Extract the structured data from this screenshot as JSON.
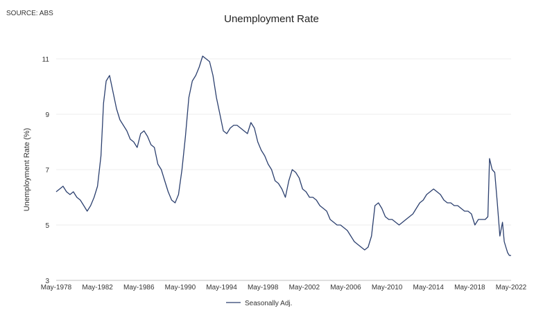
{
  "source": "SOURCE: ABS",
  "chart_data": {
    "type": "line",
    "title": "Unemployment Rate",
    "xlabel": "",
    "ylabel": "Unemployment Rate (%)",
    "ylim": [
      3,
      11
    ],
    "yticks": [
      3,
      5,
      7,
      9,
      11
    ],
    "xlim": [
      "May-1978",
      "May-2022"
    ],
    "xticks": [
      "May-1978",
      "May-1982",
      "May-1986",
      "May-1990",
      "May-1994",
      "May-1998",
      "May-2002",
      "May-2006",
      "May-2010",
      "May-2014",
      "May-2018",
      "May-2022"
    ],
    "grid": "horizontal",
    "legend": "bottom",
    "series": [
      {
        "name": "Seasonally Adj.",
        "color": "#2b3f6e",
        "x": [
          "1978-05",
          "1978-09",
          "1979-01",
          "1979-05",
          "1979-09",
          "1980-01",
          "1980-05",
          "1980-09",
          "1981-01",
          "1981-05",
          "1981-09",
          "1982-01",
          "1982-05",
          "1982-09",
          "1982-12",
          "1983-03",
          "1983-07",
          "1983-11",
          "1984-03",
          "1984-07",
          "1984-11",
          "1985-03",
          "1985-07",
          "1985-11",
          "1986-03",
          "1986-07",
          "1986-11",
          "1987-03",
          "1987-07",
          "1987-11",
          "1988-03",
          "1988-07",
          "1988-11",
          "1989-03",
          "1989-07",
          "1989-11",
          "1990-03",
          "1990-07",
          "1990-11",
          "1991-03",
          "1991-07",
          "1991-11",
          "1992-03",
          "1992-07",
          "1992-11",
          "1993-03",
          "1993-07",
          "1993-11",
          "1994-03",
          "1994-07",
          "1994-11",
          "1995-03",
          "1995-07",
          "1995-11",
          "1996-03",
          "1996-07",
          "1996-11",
          "1997-03",
          "1997-07",
          "1997-11",
          "1998-03",
          "1998-07",
          "1998-11",
          "1999-03",
          "1999-07",
          "1999-11",
          "2000-03",
          "2000-07",
          "2000-11",
          "2001-03",
          "2001-07",
          "2001-11",
          "2002-03",
          "2002-07",
          "2002-11",
          "2003-03",
          "2003-07",
          "2003-11",
          "2004-03",
          "2004-07",
          "2004-11",
          "2005-03",
          "2005-07",
          "2005-11",
          "2006-03",
          "2006-07",
          "2006-11",
          "2007-03",
          "2007-07",
          "2007-11",
          "2008-03",
          "2008-07",
          "2008-11",
          "2009-03",
          "2009-07",
          "2009-11",
          "2010-03",
          "2010-07",
          "2010-11",
          "2011-03",
          "2011-07",
          "2011-11",
          "2012-03",
          "2012-07",
          "2012-11",
          "2013-03",
          "2013-07",
          "2013-11",
          "2014-03",
          "2014-07",
          "2014-11",
          "2015-03",
          "2015-07",
          "2015-11",
          "2016-03",
          "2016-07",
          "2016-11",
          "2017-03",
          "2017-07",
          "2017-11",
          "2018-03",
          "2018-07",
          "2018-11",
          "2019-03",
          "2019-07",
          "2019-11",
          "2020-02",
          "2020-04",
          "2020-07",
          "2020-10",
          "2021-01",
          "2021-04",
          "2021-07",
          "2021-09",
          "2021-11",
          "2022-01",
          "2022-03",
          "2022-05"
        ],
        "y": [
          6.2,
          6.3,
          6.4,
          6.2,
          6.1,
          6.2,
          6.0,
          5.9,
          5.7,
          5.5,
          5.7,
          6.0,
          6.4,
          7.5,
          9.4,
          10.2,
          10.4,
          9.8,
          9.2,
          8.8,
          8.6,
          8.4,
          8.1,
          8.0,
          7.8,
          8.3,
          8.4,
          8.2,
          7.9,
          7.8,
          7.2,
          7.0,
          6.6,
          6.2,
          5.9,
          5.8,
          6.1,
          7.0,
          8.2,
          9.6,
          10.2,
          10.4,
          10.7,
          11.1,
          11.0,
          10.9,
          10.4,
          9.6,
          9.0,
          8.4,
          8.3,
          8.5,
          8.6,
          8.6,
          8.5,
          8.4,
          8.3,
          8.7,
          8.5,
          8.0,
          7.7,
          7.5,
          7.2,
          7.0,
          6.6,
          6.5,
          6.3,
          6.0,
          6.6,
          7.0,
          6.9,
          6.7,
          6.3,
          6.2,
          6.0,
          6.0,
          5.9,
          5.7,
          5.6,
          5.5,
          5.2,
          5.1,
          5.0,
          5.0,
          4.9,
          4.8,
          4.6,
          4.4,
          4.3,
          4.2,
          4.1,
          4.2,
          4.6,
          5.7,
          5.8,
          5.6,
          5.3,
          5.2,
          5.2,
          5.1,
          5.0,
          5.1,
          5.2,
          5.3,
          5.4,
          5.6,
          5.8,
          5.9,
          6.1,
          6.2,
          6.3,
          6.2,
          6.1,
          5.9,
          5.8,
          5.8,
          5.7,
          5.7,
          5.6,
          5.5,
          5.5,
          5.4,
          5.0,
          5.2,
          5.2,
          5.2,
          5.3,
          7.4,
          7.0,
          6.9,
          5.8,
          4.6,
          5.1,
          4.4,
          4.2,
          4.0,
          3.9,
          3.9
        ]
      }
    ]
  }
}
